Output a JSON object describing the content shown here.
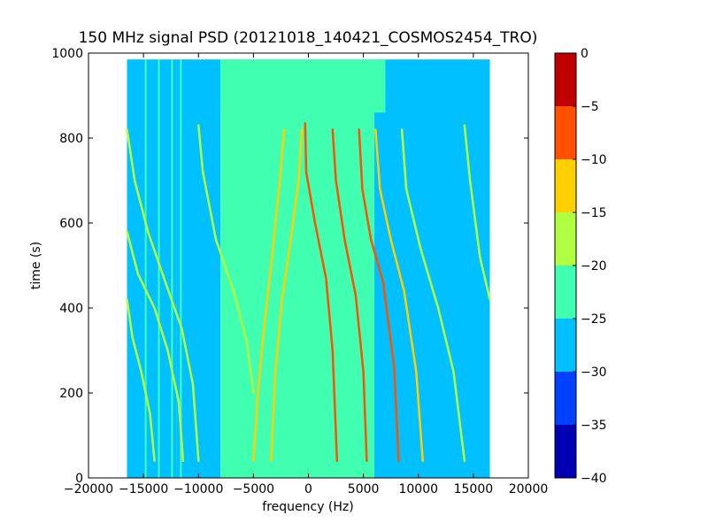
{
  "chart_data": {
    "type": "heatmap",
    "title": "150 MHz signal PSD (20121018_140421_COSMOS2454_TRO)",
    "xlabel": "frequency (Hz)",
    "ylabel": "time (s)",
    "xlim": [
      -20000,
      20000
    ],
    "ylim": [
      0,
      1000
    ],
    "xticks": [
      -20000,
      -15000,
      -10000,
      -5000,
      0,
      5000,
      10000,
      15000,
      20000
    ],
    "xtick_labels": [
      "−20000",
      "−15000",
      "−10000",
      "−5000",
      "0",
      "5000",
      "10000",
      "15000",
      "20000"
    ],
    "yticks": [
      0,
      200,
      400,
      600,
      800,
      1000
    ],
    "ytick_labels": [
      "0",
      "200",
      "400",
      "600",
      "800",
      "1000"
    ],
    "data_extent": {
      "x": [
        -16500,
        16500
      ],
      "y": [
        0,
        985
      ]
    },
    "colorbar": {
      "levels": [
        -40,
        -35,
        -30,
        -25,
        -20,
        -15,
        -10,
        -5,
        0
      ],
      "tick_labels": [
        "−40",
        "−35",
        "−30",
        "−25",
        "−20",
        "−15",
        "−10",
        "−5",
        "0"
      ],
      "colors": [
        "#0000b2",
        "#0040ff",
        "#00c0ff",
        "#40ffb0",
        "#b0ff40",
        "#ffd000",
        "#ff5000",
        "#c00000"
      ]
    },
    "background_regions": [
      {
        "x": [
          -16500,
          -12000
        ],
        "y": [
          0,
          985
        ],
        "level": -27.5
      },
      {
        "x": [
          -12000,
          -8000
        ],
        "y": [
          0,
          985
        ],
        "level": -27.5
      },
      {
        "x": [
          -8000,
          6000
        ],
        "y": [
          0,
          985
        ],
        "level": -22.5
      },
      {
        "x": [
          6000,
          16500
        ],
        "y": [
          0,
          985
        ],
        "level": -27.5
      },
      {
        "x": [
          -8000,
          7000
        ],
        "y": [
          860,
          985
        ],
        "level": -22.5
      }
    ],
    "series": [
      {
        "level": -12.5,
        "points": [
          [
            -2200,
            820
          ],
          [
            -2600,
            700
          ],
          [
            -3400,
            500
          ],
          [
            -4000,
            360
          ],
          [
            -4600,
            200
          ],
          [
            -5000,
            40
          ]
        ]
      },
      {
        "level": -12.5,
        "points": [
          [
            -600,
            820
          ],
          [
            -900,
            700
          ],
          [
            -1600,
            560
          ],
          [
            -2400,
            420
          ],
          [
            -3000,
            250
          ],
          [
            -3400,
            40
          ]
        ]
      },
      {
        "level": -7.5,
        "points": [
          [
            -300,
            835
          ],
          [
            -200,
            720
          ],
          [
            600,
            600
          ],
          [
            1600,
            470
          ],
          [
            2200,
            300
          ],
          [
            2600,
            40
          ]
        ]
      },
      {
        "level": -7.5,
        "points": [
          [
            2200,
            820
          ],
          [
            2500,
            700
          ],
          [
            3300,
            560
          ],
          [
            4300,
            430
          ],
          [
            5000,
            250
          ],
          [
            5300,
            40
          ]
        ]
      },
      {
        "level": -7.5,
        "points": [
          [
            4600,
            820
          ],
          [
            4900,
            680
          ],
          [
            5700,
            560
          ],
          [
            6800,
            460
          ],
          [
            7800,
            260
          ],
          [
            8200,
            40
          ]
        ]
      },
      {
        "level": -12.5,
        "points": [
          [
            6100,
            820
          ],
          [
            6500,
            680
          ],
          [
            7500,
            560
          ],
          [
            8700,
            440
          ],
          [
            9800,
            250
          ],
          [
            10400,
            40
          ]
        ]
      },
      {
        "level": -17.5,
        "points": [
          [
            8500,
            820
          ],
          [
            8900,
            680
          ],
          [
            10200,
            540
          ],
          [
            11800,
            400
          ],
          [
            13200,
            250
          ],
          [
            14200,
            40
          ]
        ]
      },
      {
        "level": -17.5,
        "points": [
          [
            14200,
            830
          ],
          [
            14700,
            700
          ],
          [
            15600,
            520
          ],
          [
            16500,
            420
          ]
        ]
      },
      {
        "level": -17.5,
        "points": [
          [
            -10000,
            830
          ],
          [
            -9600,
            720
          ],
          [
            -8400,
            560
          ],
          [
            -6800,
            440
          ],
          [
            -5600,
            320
          ],
          [
            -5000,
            200
          ]
        ]
      },
      {
        "level": -17.5,
        "points": [
          [
            -16500,
            820
          ],
          [
            -15800,
            700
          ],
          [
            -14600,
            580
          ],
          [
            -13000,
            460
          ],
          [
            -11500,
            350
          ],
          [
            -10500,
            220
          ],
          [
            -10000,
            40
          ]
        ]
      },
      {
        "level": -17.5,
        "points": [
          [
            -16500,
            580
          ],
          [
            -15500,
            480
          ],
          [
            -14000,
            400
          ],
          [
            -12800,
            300
          ],
          [
            -11800,
            180
          ],
          [
            -11400,
            40
          ]
        ]
      },
      {
        "level": -17.5,
        "points": [
          [
            -16500,
            420
          ],
          [
            -16000,
            330
          ],
          [
            -15200,
            250
          ],
          [
            -14400,
            150
          ],
          [
            -14000,
            40
          ]
        ]
      }
    ],
    "vertical_lines": [
      {
        "x": -14800,
        "level": -22.5
      },
      {
        "x": -13600,
        "level": -22.5
      },
      {
        "x": -12400,
        "level": -22.5
      },
      {
        "x": -11600,
        "level": -22.5
      }
    ]
  }
}
